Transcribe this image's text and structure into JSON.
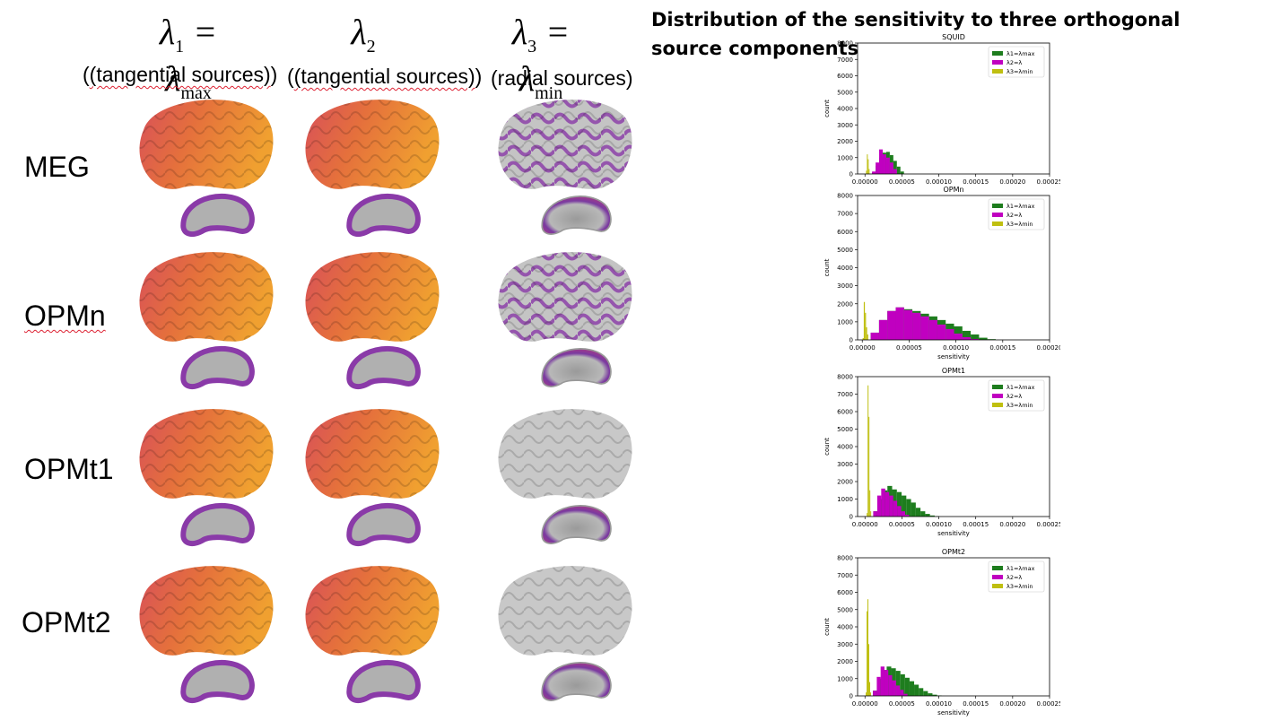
{
  "headings": {
    "col1_math": "λ1 = λmax",
    "col2_math": "λ2",
    "col3_math": "λ3 = λmin",
    "col1_sub": "(tangential sources)",
    "col2_sub": "(tangential sources)",
    "col3_sub": "(radial sources)"
  },
  "rows": [
    "MEG",
    "OPMn",
    "OPMt1",
    "OPMt2"
  ],
  "title": "Distribution of the sensitivity to three orthogonal source components",
  "colors": {
    "lmax": "#1e7d1e",
    "l2": "#c000c0",
    "lmin": "#bfbf10",
    "brain_hot": "#f0a030",
    "brain_mid": "#d8505a",
    "brain_cool": "#7a3aa0",
    "brain_gray": "#b8b8b8"
  },
  "brain_maps": [
    [
      "hot",
      "hot",
      "gray-mixed"
    ],
    [
      "hot",
      "hot",
      "gray-mixed"
    ],
    [
      "hot",
      "hot",
      "gray"
    ],
    [
      "hot",
      "hot",
      "gray"
    ]
  ],
  "chart_data": [
    {
      "type": "bar",
      "title": "SQUID",
      "xlabel": "",
      "ylabel": "count",
      "xlim": [
        -1e-05,
        0.00025
      ],
      "ylim": [
        0,
        8000
      ],
      "yticks": [
        "0",
        "1000",
        "2000",
        "3000",
        "4000",
        "5000",
        "6000",
        "7000",
        "8000"
      ],
      "xticks": [
        "0.00000",
        "0.00005",
        "0.00010",
        "0.00015",
        "0.00020",
        "0.00025"
      ],
      "legend": [
        "λ1=λmax",
        "λ2=λ",
        "λ3=λmin"
      ],
      "legend_position": "top-right",
      "series": [
        {
          "name": "λ1=λmax",
          "bin_start": 9.6e-06,
          "bin_width": 4.8e-06,
          "values": [
            100,
            500,
            1000,
            1300,
            1350,
            1150,
            800,
            450,
            150
          ]
        },
        {
          "name": "λ2=λ",
          "bin_start": 9.6e-06,
          "bin_width": 4.8e-06,
          "values": [
            150,
            700,
            1500,
            1200,
            1000,
            700,
            300
          ]
        },
        {
          "name": "λ3=λmin",
          "bin_start": 1.4e-06,
          "bin_width": 1.2e-06,
          "values": [
            200,
            1200,
            900,
            300
          ]
        }
      ]
    },
    {
      "type": "bar",
      "title": "OPMn",
      "xlabel": "sensitivity",
      "ylabel": "count",
      "xlim": [
        -5e-06,
        0.0002
      ],
      "ylim": [
        0,
        8000
      ],
      "yticks": [
        "0",
        "1000",
        "2000",
        "3000",
        "4000",
        "5000",
        "6000",
        "7000",
        "8000"
      ],
      "xticks": [
        "0.00000",
        "0.00005",
        "0.00010",
        "0.00015",
        "0.00020"
      ],
      "legend": [
        "λ1=λmax",
        "λ2=λ",
        "λ3=λmin"
      ],
      "legend_position": "top-right",
      "series": [
        {
          "name": "λ1=λmax",
          "bin_start": 9e-06,
          "bin_width": 8.9e-06,
          "values": [
            400,
            1100,
            1600,
            1800,
            1700,
            1600,
            1450,
            1300,
            1100,
            900,
            750,
            500,
            300,
            120,
            40
          ]
        },
        {
          "name": "λ2=λ",
          "bin_start": 9e-06,
          "bin_width": 8.9e-06,
          "values": [
            400,
            1100,
            1600,
            1800,
            1650,
            1500,
            1300,
            1100,
            850,
            600,
            350,
            150,
            50
          ]
        },
        {
          "name": "λ3=λmin",
          "bin_start": 4e-07,
          "bin_width": 1.2e-06,
          "values": [
            100,
            2100,
            1500,
            700,
            300
          ]
        }
      ]
    },
    {
      "type": "bar",
      "title": "OPMt1",
      "xlabel": "sensitivity",
      "ylabel": "count",
      "xlim": [
        -1e-05,
        0.00025
      ],
      "ylim": [
        0,
        8000
      ],
      "yticks": [
        "0",
        "1000",
        "2000",
        "3000",
        "4000",
        "5000",
        "6000",
        "7000",
        "8000"
      ],
      "xticks": [
        "0.00000",
        "0.00005",
        "0.00010",
        "0.00015",
        "0.00020",
        "0.00025"
      ],
      "legend": [
        "λ1=λmax",
        "λ2=λ",
        "λ3=λmin"
      ],
      "legend_position": "top-right",
      "series": [
        {
          "name": "λ1=λmax",
          "bin_start": 1.12e-05,
          "bin_width": 6.4e-06,
          "values": [
            300,
            1000,
            1500,
            1750,
            1550,
            1400,
            1200,
            1000,
            800,
            500,
            300,
            150,
            60,
            20
          ]
        },
        {
          "name": "λ2=λ",
          "bin_start": 1.12e-05,
          "bin_width": 5.4e-06,
          "values": [
            300,
            1200,
            1600,
            1400,
            1200,
            900,
            600,
            300,
            100
          ]
        },
        {
          "name": "λ3=λmin",
          "bin_start": 2.4e-06,
          "bin_width": 1.2e-06,
          "values": [
            200,
            7500,
            5700,
            1500,
            300
          ]
        }
      ]
    },
    {
      "type": "bar",
      "title": "OPMt2",
      "xlabel": "sensitivity",
      "ylabel": "count",
      "xlim": [
        -1e-05,
        0.00025
      ],
      "ylim": [
        0,
        8000
      ],
      "yticks": [
        "0",
        "1000",
        "2000",
        "3000",
        "4000",
        "5000",
        "6000",
        "7000",
        "8000"
      ],
      "xticks": [
        "0.00000",
        "0.00005",
        "0.00010",
        "0.00015",
        "0.00020",
        "0.00025"
      ],
      "legend": [
        "λ1=λmax",
        "λ2=λ",
        "λ3=λmin"
      ],
      "legend_position": "top-right",
      "series": [
        {
          "name": "λ1=λmax",
          "bin_start": 1.08e-05,
          "bin_width": 6.2e-06,
          "values": [
            300,
            1000,
            1500,
            1700,
            1600,
            1450,
            1250,
            1050,
            850,
            650,
            450,
            280,
            150,
            70,
            25
          ]
        },
        {
          "name": "λ2=λ",
          "bin_start": 1.08e-05,
          "bin_width": 5.2e-06,
          "values": [
            300,
            1100,
            1700,
            1500,
            1200,
            900,
            600,
            350,
            120
          ]
        },
        {
          "name": "λ3=λmin",
          "bin_start": 1e-06,
          "bin_width": 1.2e-06,
          "values": [
            200,
            4900,
            5600,
            3000,
            800,
            200
          ]
        }
      ]
    }
  ]
}
